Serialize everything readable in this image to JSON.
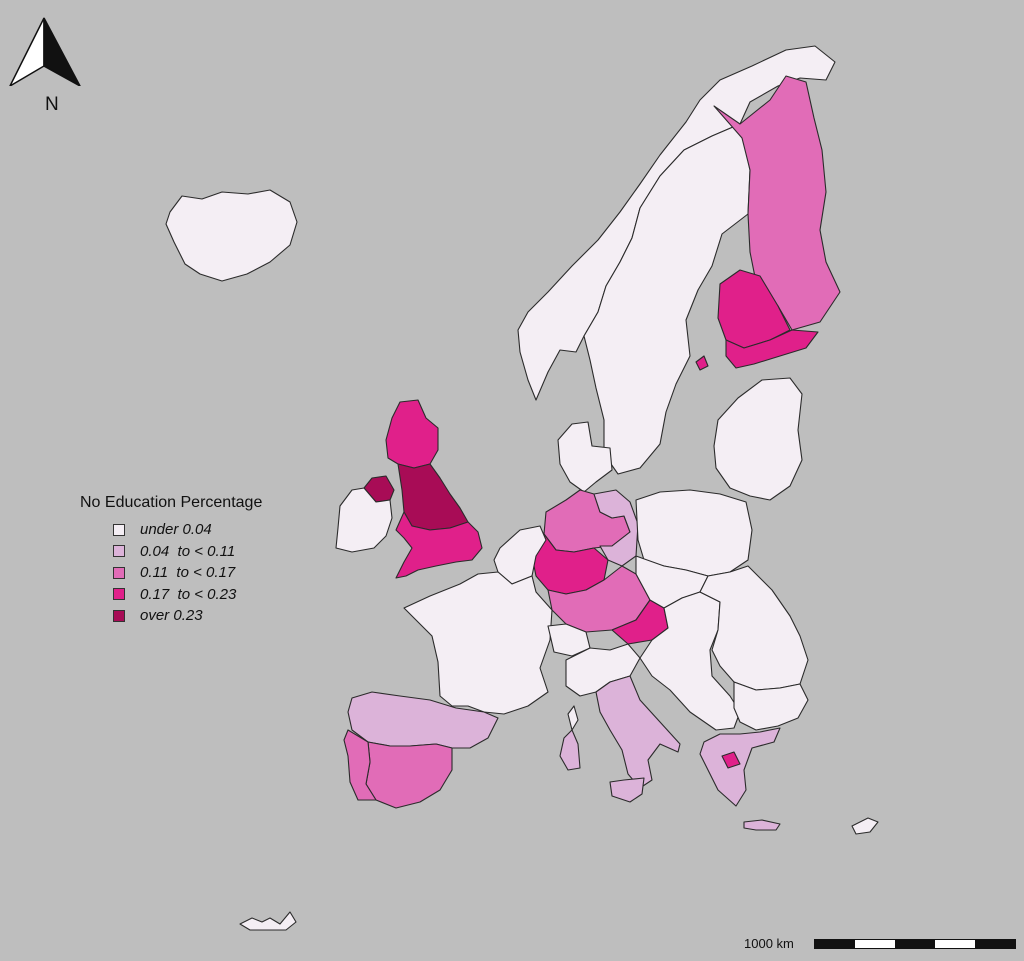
{
  "legend": {
    "title": "No Education Percentage",
    "classes": [
      {
        "label": "under 0.04",
        "color": "#f4eef4"
      },
      {
        "label": "0.04  to < 0.11",
        "color": "#dcb3d9"
      },
      {
        "label": "0.11  to < 0.17",
        "color": "#e16cb7"
      },
      {
        "label": "0.17  to < 0.23",
        "color": "#e0208a"
      },
      {
        "label": "over 0.23",
        "color": "#a80c56"
      }
    ]
  },
  "north_arrow": {
    "label": "N"
  },
  "scale_bar": {
    "label": "1000 km",
    "segments": 5
  },
  "colors": {
    "background": "#bebebe",
    "border": "#2b2b2b"
  },
  "regions": [
    {
      "name": "Iceland",
      "class": 0
    },
    {
      "name": "Norway",
      "class": 0
    },
    {
      "name": "Sweden",
      "class": 0
    },
    {
      "name": "Finland north",
      "class": 2
    },
    {
      "name": "Finland west",
      "class": 3
    },
    {
      "name": "Finland south",
      "class": 3
    },
    {
      "name": "Aland",
      "class": 3
    },
    {
      "name": "Denmark",
      "class": 0
    },
    {
      "name": "Baltics",
      "class": 0
    },
    {
      "name": "Scotland",
      "class": 3
    },
    {
      "name": "Northern Ireland",
      "class": 4
    },
    {
      "name": "England north",
      "class": 4
    },
    {
      "name": "England south",
      "class": 3
    },
    {
      "name": "Ireland",
      "class": 0
    },
    {
      "name": "Germany north",
      "class": 2
    },
    {
      "name": "Germany east",
      "class": 1
    },
    {
      "name": "Germany west",
      "class": 3
    },
    {
      "name": "Germany south",
      "class": 2
    },
    {
      "name": "Austria",
      "class": 3
    },
    {
      "name": "Benelux",
      "class": 0
    },
    {
      "name": "France",
      "class": 0
    },
    {
      "name": "Poland",
      "class": 0
    },
    {
      "name": "Czechia",
      "class": 0
    },
    {
      "name": "Switzerland",
      "class": 0
    },
    {
      "name": "Hungary Balkans",
      "class": 0
    },
    {
      "name": "Romania",
      "class": 0
    },
    {
      "name": "Bulgaria",
      "class": 0
    },
    {
      "name": "Spain north",
      "class": 1
    },
    {
      "name": "Spain south",
      "class": 2
    },
    {
      "name": "Portugal",
      "class": 2
    },
    {
      "name": "Italy north",
      "class": 0
    },
    {
      "name": "Italy south",
      "class": 1
    },
    {
      "name": "Sardinia",
      "class": 1
    },
    {
      "name": "Sicily",
      "class": 1
    },
    {
      "name": "Corsica",
      "class": 0
    },
    {
      "name": "Greece",
      "class": 1
    },
    {
      "name": "Attica",
      "class": 3
    },
    {
      "name": "Crete",
      "class": 1
    },
    {
      "name": "Cyprus",
      "class": 0
    },
    {
      "name": "Canary Islands",
      "class": 0
    }
  ]
}
